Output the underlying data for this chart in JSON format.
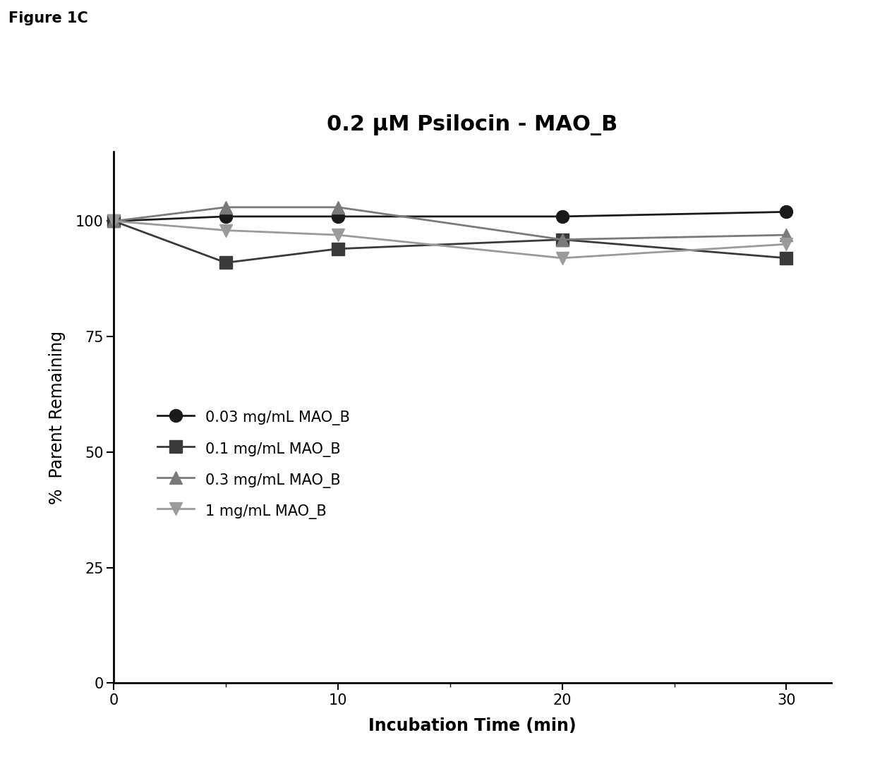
{
  "title": "0.2 μM Psilocin - MAO_B",
  "figure_label": "Figure 1C",
  "xlabel": "Incubation Time (min)",
  "ylabel": "%  Parent Remaining",
  "x": [
    0,
    5,
    10,
    20,
    30
  ],
  "series": [
    {
      "label": "0.03 mg/mL MAO_B",
      "y": [
        100,
        101,
        101,
        101,
        102
      ],
      "color": "#1a1a1a",
      "marker": "o",
      "markersize": 13,
      "linewidth": 2.0,
      "fillstyle": "full"
    },
    {
      "label": "0.1 mg/mL MAO_B",
      "y": [
        100,
        91,
        94,
        96,
        92
      ],
      "color": "#3a3a3a",
      "marker": "s",
      "markersize": 13,
      "linewidth": 2.0,
      "fillstyle": "full"
    },
    {
      "label": "0.3 mg/mL MAO_B",
      "y": [
        100,
        103,
        103,
        96,
        97
      ],
      "color": "#7a7a7a",
      "marker": "^",
      "markersize": 13,
      "linewidth": 2.0,
      "fillstyle": "full"
    },
    {
      "label": "1 mg/mL MAO_B",
      "y": [
        100,
        98,
        97,
        92,
        95
      ],
      "color": "#9a9a9a",
      "marker": "v",
      "markersize": 13,
      "linewidth": 2.0,
      "fillstyle": "full"
    }
  ],
  "xlim": [
    0,
    32
  ],
  "ylim": [
    0,
    115
  ],
  "yticks": [
    0,
    25,
    50,
    75,
    100
  ],
  "xticks": [
    0,
    10,
    20,
    30
  ],
  "background_color": "#ffffff",
  "title_fontsize": 22,
  "label_fontsize": 17,
  "tick_fontsize": 15,
  "legend_fontsize": 15,
  "figure_label_fontsize": 15
}
